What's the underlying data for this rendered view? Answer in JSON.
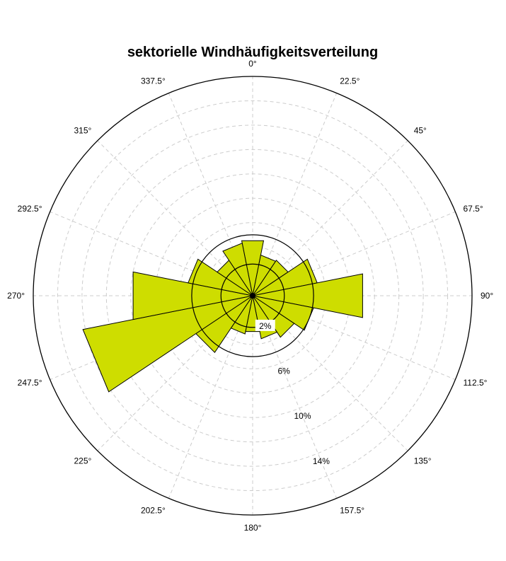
{
  "chart_data": {
    "type": "polar-bar",
    "title": "sektorielle Windhäufigkeitsverteilung",
    "directions": [
      "0°",
      "22.5°",
      "45°",
      "67.5°",
      "90°",
      "112.5°",
      "135°",
      "157.5°",
      "180°",
      "202.5°",
      "225°",
      "247.5°",
      "270°",
      "292.5°",
      "315°",
      "337.5°"
    ],
    "direction_degrees": [
      0,
      22.5,
      45,
      67.5,
      90,
      112.5,
      135,
      157.5,
      180,
      202.5,
      225,
      247.5,
      270,
      292.5,
      315,
      337.5
    ],
    "values": [
      4.6,
      3.4,
      3.5,
      5.4,
      9.2,
      5.1,
      4.1,
      3.6,
      3.0,
      3.2,
      5.6,
      14.2,
      10.0,
      5.4,
      3.5,
      4.4
    ],
    "radial_ticks": [
      2,
      6,
      10,
      14
    ],
    "radial_tick_labels": [
      "2%",
      "6%",
      "10%",
      "14%"
    ],
    "radial_max": 18,
    "solid_rings": [
      2.6,
      5.0
    ],
    "bar_color": "#cedd00",
    "grid": true
  }
}
